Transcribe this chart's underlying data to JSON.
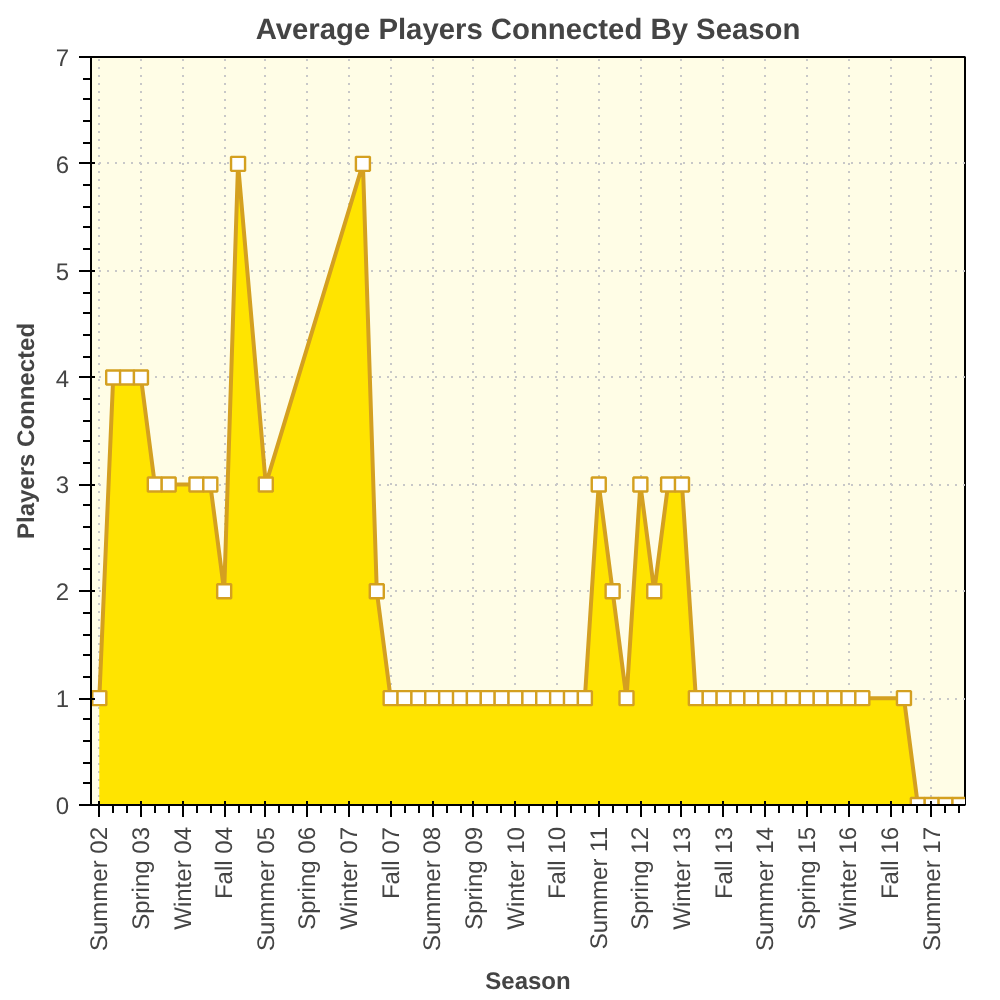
{
  "chart_data": {
    "type": "area",
    "title": "Average Players Connected By Season",
    "xlabel": "Season",
    "ylabel": "Players Connected",
    "categories": [
      "Summer 02",
      null,
      null,
      "Spring 03",
      null,
      null,
      "Winter 04",
      null,
      null,
      "Fall 04",
      null,
      null,
      "Summer 05",
      null,
      null,
      "Spring 06",
      null,
      null,
      "Winter 07",
      null,
      null,
      "Fall 07",
      null,
      null,
      "Summer 08",
      null,
      null,
      "Spring 09",
      null,
      null,
      "Winter 10",
      null,
      null,
      "Fall 10",
      null,
      null,
      "Summer 11",
      null,
      null,
      "Spring 12",
      null,
      null,
      "Winter 13",
      null,
      null,
      "Fall 13",
      null,
      null,
      "Summer 14",
      null,
      null,
      "Spring 15",
      null,
      null,
      "Winter 16",
      null,
      null,
      "Fall 16",
      null,
      null,
      "Summer 17",
      null,
      null
    ],
    "series": [
      {
        "color": "#ffe400",
        "values": [
          1,
          4,
          4,
          4,
          3,
          3,
          null,
          3,
          3,
          2,
          6,
          null,
          3,
          null,
          null,
          null,
          null,
          null,
          null,
          6,
          2,
          1,
          1,
          1,
          1,
          1,
          1,
          1,
          1,
          1,
          1,
          1,
          1,
          1,
          1,
          1,
          3,
          2,
          1,
          3,
          2,
          3,
          3,
          1,
          1,
          1,
          1,
          1,
          1,
          1,
          1,
          1,
          1,
          1,
          1,
          1,
          null,
          null,
          1,
          0,
          0,
          0,
          0
        ]
      }
    ],
    "ylim": [
      0,
      7
    ],
    "yticks": [
      0,
      1,
      2,
      3,
      4,
      5,
      6,
      7
    ],
    "grid": true,
    "marker": "square"
  }
}
